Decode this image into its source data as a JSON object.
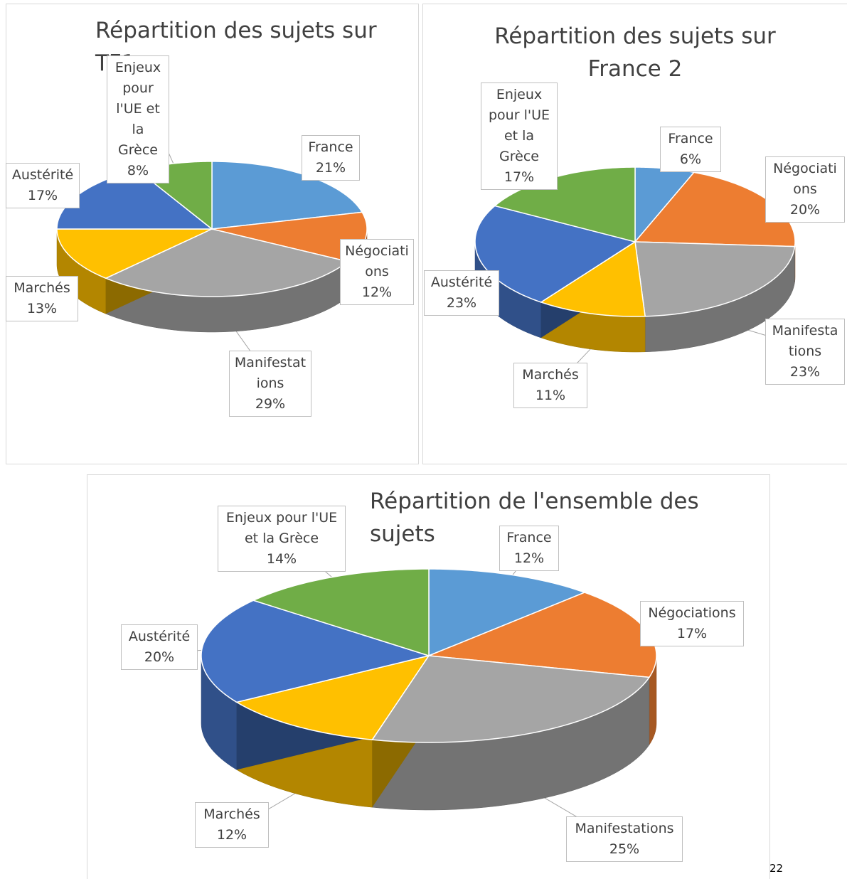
{
  "chart_data": [
    {
      "type": "pie",
      "title": "Répartition des sujets sur TF1",
      "categories": [
        "France",
        "Négociations",
        "Manifestations",
        "Marchés",
        "Austérité",
        "Enjeux pour l'UE et la Grèce"
      ],
      "values": [
        21,
        12,
        29,
        13,
        17,
        8
      ],
      "value_labels": [
        "21%",
        "12%",
        "29%",
        "13%",
        "17%",
        "8%"
      ],
      "colors": [
        "#5b9bd5",
        "#ed7d31",
        "#a5a5a5",
        "#ffc000",
        "#4472c4",
        "#70ad47"
      ]
    },
    {
      "type": "pie",
      "title": "Répartition des sujets sur France 2",
      "categories": [
        "France",
        "Négociations",
        "Manifestations",
        "Marchés",
        "Austérité",
        "Enjeux pour l'UE et la Grèce"
      ],
      "values": [
        6,
        20,
        23,
        11,
        23,
        17
      ],
      "value_labels": [
        "6%",
        "20%",
        "23%",
        "11%",
        "23%",
        "17%"
      ],
      "colors": [
        "#5b9bd5",
        "#ed7d31",
        "#a5a5a5",
        "#ffc000",
        "#4472c4",
        "#70ad47"
      ]
    },
    {
      "type": "pie",
      "title": "Répartition de l'ensemble des sujets",
      "categories": [
        "France",
        "Négociations",
        "Manifestations",
        "Marchés",
        "Austérité",
        "Enjeux pour l'UE et la Grèce"
      ],
      "values": [
        12,
        17,
        25,
        12,
        20,
        14
      ],
      "value_labels": [
        "12%",
        "17%",
        "25%",
        "12%",
        "20%",
        "14%"
      ],
      "colors": [
        "#5b9bd5",
        "#ed7d31",
        "#a5a5a5",
        "#ffc000",
        "#4472c4",
        "#70ad47"
      ]
    }
  ],
  "page_number": "22"
}
